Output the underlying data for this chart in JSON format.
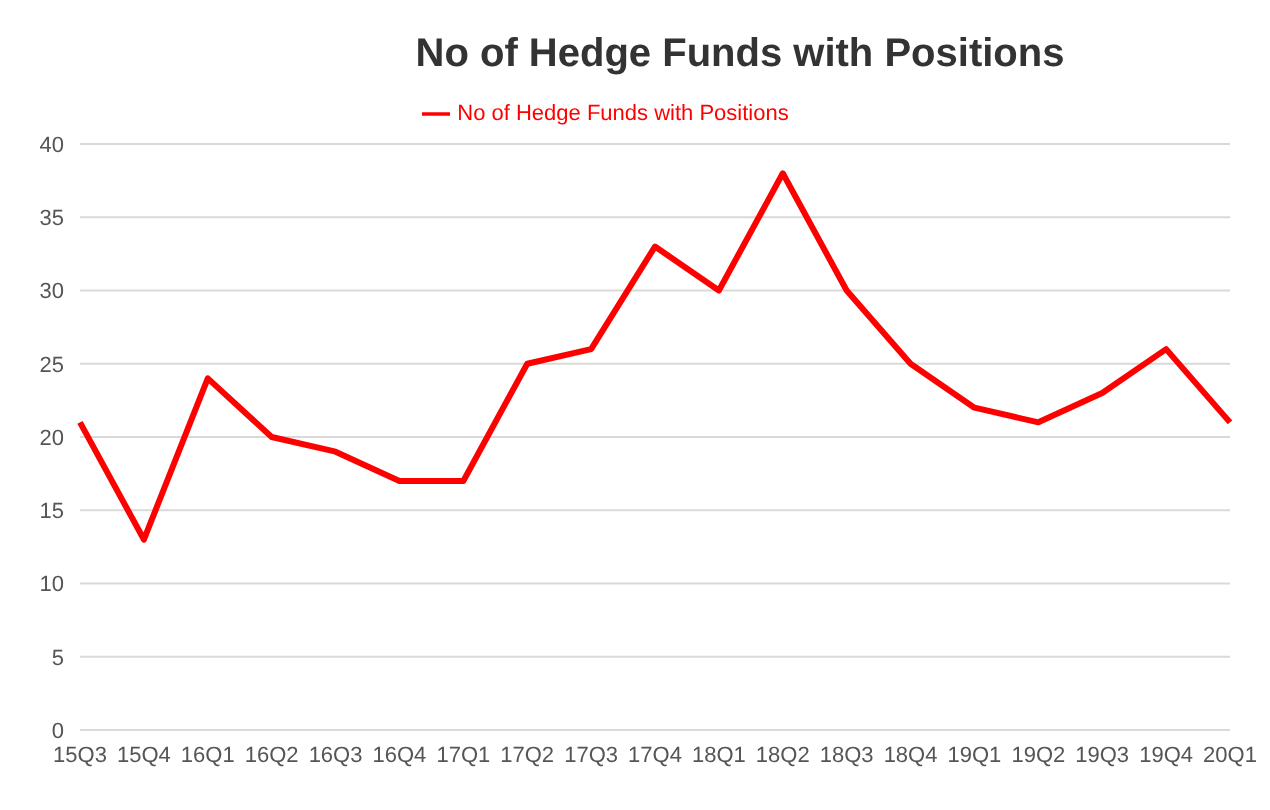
{
  "chart_data": {
    "type": "line",
    "title": "No of Hedge Funds with Positions",
    "categories": [
      "15Q3",
      "15Q4",
      "16Q1",
      "16Q2",
      "16Q3",
      "16Q4",
      "17Q1",
      "17Q2",
      "17Q3",
      "17Q4",
      "18Q1",
      "18Q2",
      "18Q3",
      "18Q4",
      "19Q1",
      "19Q2",
      "19Q3",
      "19Q4",
      "20Q1"
    ],
    "series": [
      {
        "name": "No of Hedge Funds with Positions",
        "color": "#ff0000",
        "values": [
          21,
          13,
          24,
          20,
          19,
          17,
          17,
          25,
          26,
          33,
          30,
          38,
          30,
          25,
          22,
          21,
          23,
          26,
          21
        ]
      }
    ],
    "ylim": [
      0,
      40
    ],
    "yticks": [
      0,
      5,
      10,
      15,
      20,
      25,
      30,
      35,
      40
    ],
    "grid": "y",
    "legend": "top",
    "marker": "none",
    "line_style": "solid"
  }
}
